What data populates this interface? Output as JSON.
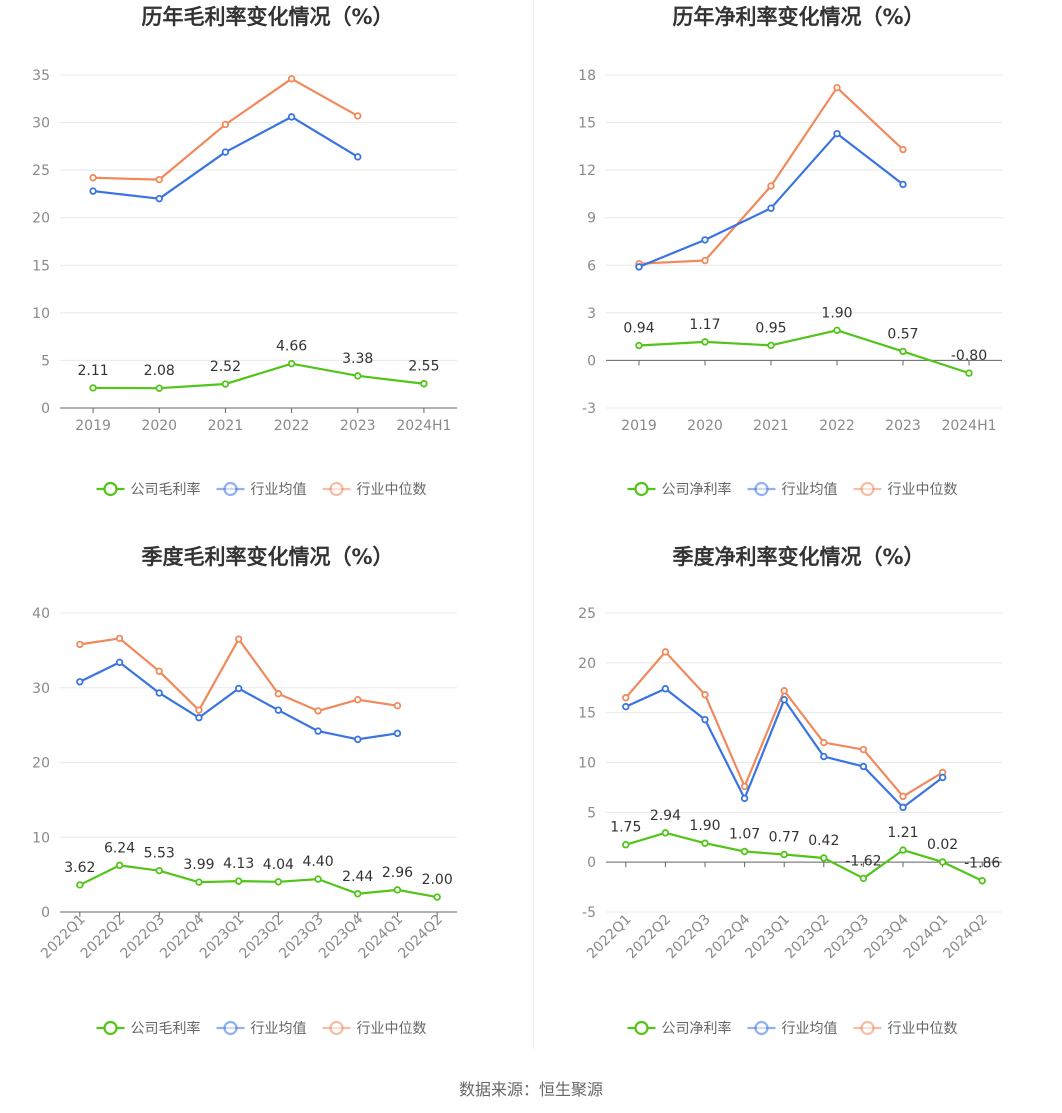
{
  "colors": {
    "company": "#52c41a",
    "avg": "#3a74e0",
    "median": "#f08a5d"
  },
  "legend_markers": {
    "company": "●",
    "avg": "●",
    "median": "●"
  },
  "source": "数据来源：恒生聚源",
  "chart_data": [
    {
      "type": "line",
      "title": "历年毛利率变化情况（%）",
      "categories": [
        "2019",
        "2020",
        "2021",
        "2022",
        "2023",
        "2024H1"
      ],
      "yticks": [
        0,
        5,
        10,
        15,
        20,
        25,
        30,
        35
      ],
      "ylim": [
        0,
        35
      ],
      "series": [
        {
          "name": "公司毛利率",
          "key": "company",
          "values": [
            2.11,
            2.08,
            2.52,
            4.66,
            3.38,
            2.55
          ],
          "labels": [
            "2.11",
            "2.08",
            "2.52",
            "4.66",
            "3.38",
            "2.55"
          ]
        },
        {
          "name": "行业均值",
          "key": "avg",
          "values": [
            22.8,
            22.0,
            26.9,
            30.6,
            26.4,
            null
          ]
        },
        {
          "name": "行业中位数",
          "key": "median",
          "values": [
            24.2,
            24.0,
            29.8,
            34.6,
            30.7,
            null
          ]
        }
      ],
      "legend": [
        "公司毛利率",
        "行业均值",
        "行业中位数"
      ]
    },
    {
      "type": "line",
      "title": "历年净利率变化情况（%）",
      "categories": [
        "2019",
        "2020",
        "2021",
        "2022",
        "2023",
        "2024H1"
      ],
      "yticks": [
        -3,
        0,
        3,
        6,
        9,
        12,
        15,
        18
      ],
      "ylim": [
        -3,
        18
      ],
      "series": [
        {
          "name": "公司净利率",
          "key": "company",
          "values": [
            0.94,
            1.17,
            0.95,
            1.9,
            0.57,
            -0.8
          ],
          "labels": [
            "0.94",
            "1.17",
            "0.95",
            "1.90",
            "0.57",
            "-0.80"
          ]
        },
        {
          "name": "行业均值",
          "key": "avg",
          "values": [
            5.9,
            7.6,
            9.6,
            14.3,
            11.1,
            null
          ]
        },
        {
          "name": "行业中位数",
          "key": "median",
          "values": [
            6.1,
            6.3,
            11.0,
            17.2,
            13.3,
            null
          ]
        }
      ],
      "legend": [
        "公司净利率",
        "行业均值",
        "行业中位数"
      ]
    },
    {
      "type": "line",
      "title": "季度毛利率变化情况（%）",
      "categories": [
        "2022Q1",
        "2022Q2",
        "2022Q3",
        "2022Q4",
        "2023Q1",
        "2023Q2",
        "2023Q3",
        "2023Q4",
        "2024Q1",
        "2024Q2"
      ],
      "yticks": [
        0,
        10,
        20,
        30,
        40
      ],
      "ylim": [
        0,
        40
      ],
      "series": [
        {
          "name": "公司毛利率",
          "key": "company",
          "values": [
            3.62,
            6.24,
            5.53,
            3.99,
            4.13,
            4.04,
            4.4,
            2.44,
            2.96,
            2.0
          ],
          "labels": [
            "3.62",
            "6.24",
            "5.53",
            "3.99",
            "4.13",
            "4.04",
            "4.40",
            "2.44",
            "2.96",
            "2.00"
          ]
        },
        {
          "name": "行业均值",
          "key": "avg",
          "values": [
            30.8,
            33.4,
            29.3,
            26.0,
            29.9,
            27.0,
            24.2,
            23.1,
            23.9,
            null
          ]
        },
        {
          "name": "行业中位数",
          "key": "median",
          "values": [
            35.8,
            36.6,
            32.2,
            27.0,
            36.5,
            29.2,
            26.9,
            28.4,
            27.6,
            null
          ]
        }
      ],
      "legend": [
        "公司毛利率",
        "行业均值",
        "行业中位数"
      ]
    },
    {
      "type": "line",
      "title": "季度净利率变化情况（%）",
      "categories": [
        "2022Q1",
        "2022Q2",
        "2022Q3",
        "2022Q4",
        "2023Q1",
        "2023Q2",
        "2023Q3",
        "2023Q4",
        "2024Q1",
        "2024Q2"
      ],
      "yticks": [
        -5,
        0,
        5,
        10,
        15,
        20,
        25
      ],
      "ylim": [
        -5,
        25
      ],
      "series": [
        {
          "name": "公司净利率",
          "key": "company",
          "values": [
            1.75,
            2.94,
            1.9,
            1.07,
            0.77,
            0.42,
            -1.62,
            1.21,
            0.02,
            -1.86
          ],
          "labels": [
            "1.75",
            "2.94",
            "1.90",
            "1.07",
            "0.77",
            "0.42",
            "-1.62",
            "1.21",
            "0.02",
            "-1.86"
          ]
        },
        {
          "name": "行业均值",
          "key": "avg",
          "values": [
            15.6,
            17.4,
            14.3,
            6.4,
            16.3,
            10.6,
            9.6,
            5.5,
            8.5,
            null
          ]
        },
        {
          "name": "行业中位数",
          "key": "median",
          "values": [
            16.5,
            21.1,
            16.8,
            7.6,
            17.2,
            12.0,
            11.3,
            6.6,
            9.0,
            null
          ]
        }
      ],
      "legend": [
        "公司净利率",
        "行业均值",
        "行业中位数"
      ]
    }
  ]
}
